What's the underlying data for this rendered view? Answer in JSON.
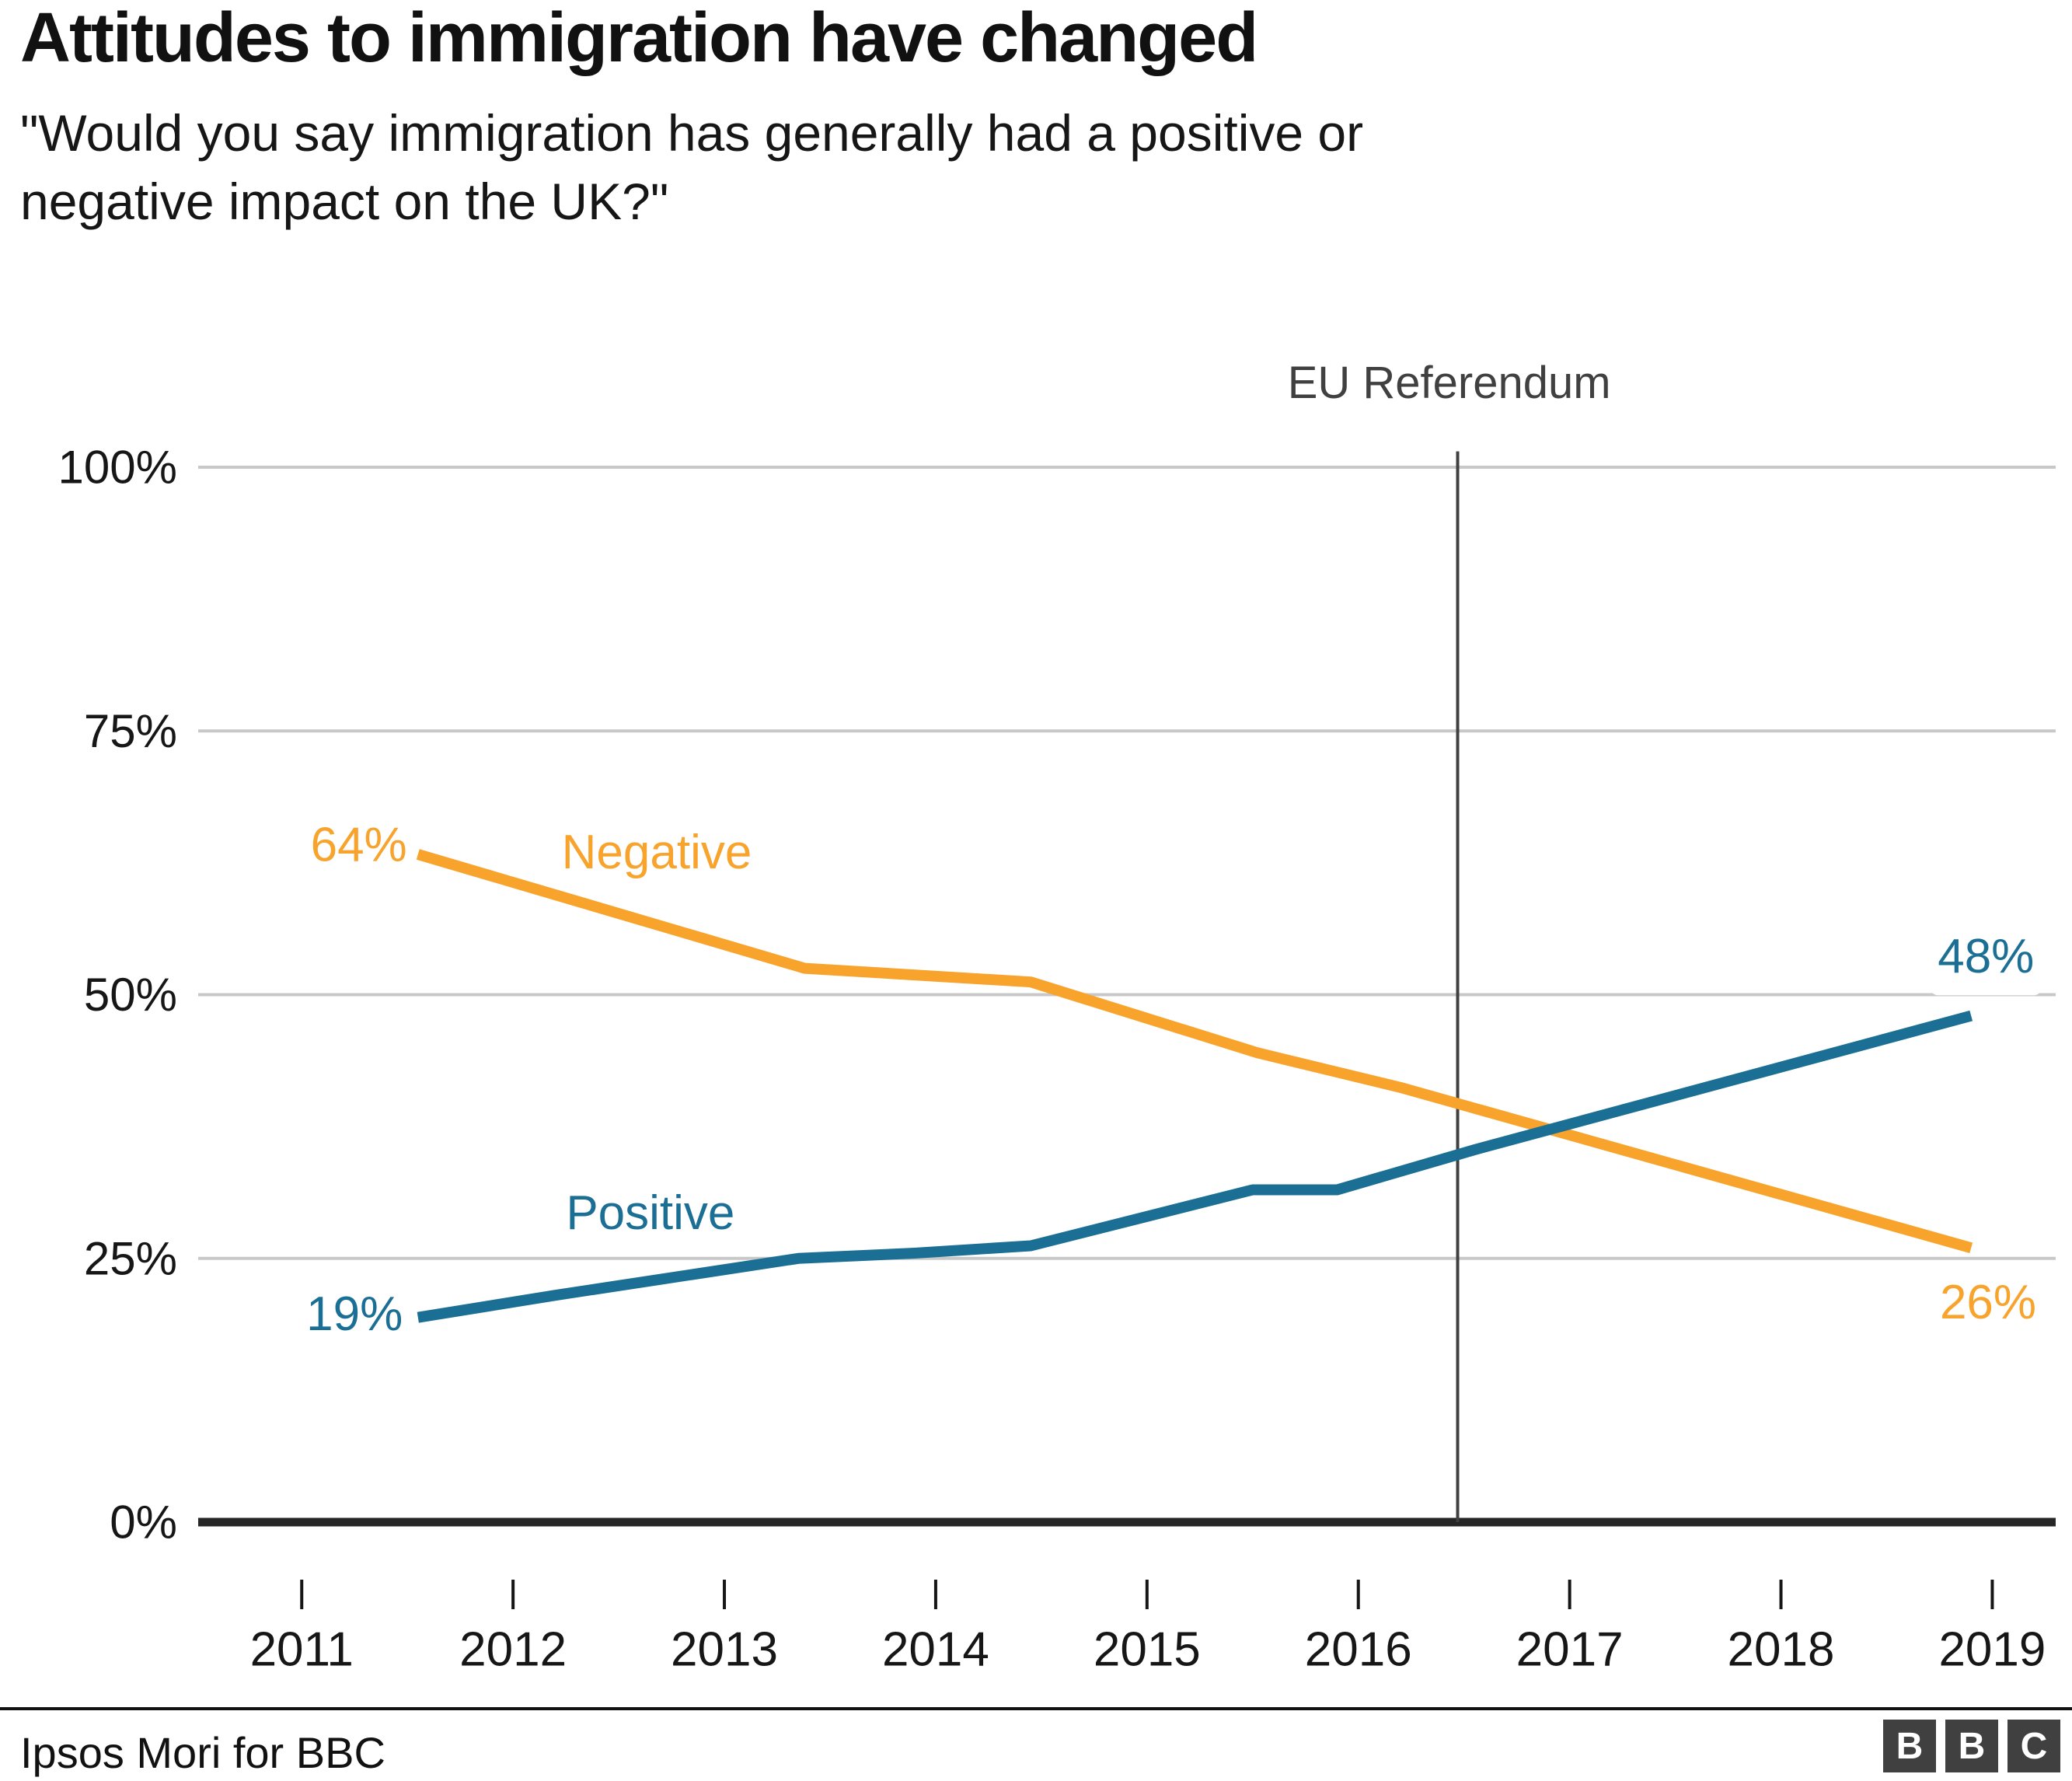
{
  "header": {
    "title": "Attitudes to immigration have changed",
    "subtitle_line1": "\"Would you say immigration has generally had a positive or",
    "subtitle_line2": "negative impact on the UK?\""
  },
  "footer": {
    "source": "Ipsos Mori for BBC",
    "logo_letters": [
      "B",
      "B",
      "C"
    ]
  },
  "colors": {
    "negative": "#f7a32c",
    "positive": "#1c6f94",
    "grid": "#c8c8c8",
    "axis": "#262626",
    "refline": "#404040",
    "tick_text": "#161616",
    "logo_bg": "#404040"
  },
  "chart_data": {
    "type": "line",
    "title": "Attitudes to immigration have changed",
    "subtitle": "\"Would you say immigration has generally had a positive or negative impact on the UK?\"",
    "xlabel": "",
    "ylabel": "",
    "x_axis": {
      "tick_values": [
        2011,
        2012,
        2013,
        2014,
        2015,
        2016,
        2017,
        2018,
        2019
      ],
      "tick_labels": [
        "2011",
        "2012",
        "2013",
        "2014",
        "2015",
        "2016",
        "2017",
        "2018",
        "2019"
      ],
      "range": [
        2010.51,
        2019.3
      ]
    },
    "y_axis": {
      "tick_values": [
        0,
        25,
        50,
        75,
        100
      ],
      "tick_labels": [
        "0%",
        "25%",
        "50%",
        "75%",
        "100%"
      ],
      "range": [
        0,
        100
      ],
      "gridlines": true
    },
    "reference_line": {
      "label": "EU Referendum",
      "x": 2016.47,
      "y_top_pct": 101.5,
      "label_x": 2016.43,
      "label_y_pct": 108
    },
    "series": [
      {
        "name": "Negative",
        "color_key": "negative",
        "start_value": 64,
        "end_value": 26,
        "points": [
          [
            2011.55,
            63.3
          ],
          [
            2013.38,
            52.5
          ],
          [
            2014.45,
            51.2
          ],
          [
            2015.52,
            44.5
          ],
          [
            2016.2,
            41.2
          ],
          [
            2018.9,
            26
          ]
        ]
      },
      {
        "name": "Positive",
        "color_key": "positive",
        "start_value": 19,
        "end_value": 48,
        "points": [
          [
            2011.55,
            19.4
          ],
          [
            2012.2,
            21.5
          ],
          [
            2013.35,
            25
          ],
          [
            2013.9,
            25.5
          ],
          [
            2014.45,
            26.2
          ],
          [
            2015.5,
            31.5
          ],
          [
            2015.9,
            31.5
          ],
          [
            2016.55,
            35.3
          ],
          [
            2018.9,
            48
          ]
        ]
      }
    ],
    "annotations": [
      {
        "text": "64%",
        "color_key": "negative",
        "x": 2011.27,
        "y": 64.2,
        "halo": false
      },
      {
        "text": "Negative",
        "color_key": "negative",
        "x": 2012.68,
        "y": 63.5,
        "halo": false
      },
      {
        "text": "19%",
        "color_key": "positive",
        "x": 2011.25,
        "y": 19.7,
        "halo": false
      },
      {
        "text": "Positive",
        "color_key": "positive",
        "x": 2012.65,
        "y": 29.3,
        "halo": false
      },
      {
        "text": "48%",
        "color_key": "positive",
        "x": 2018.97,
        "y": 53.6,
        "halo": true
      },
      {
        "text": "26%",
        "color_key": "negative",
        "x": 2018.98,
        "y": 20.8,
        "halo": false
      }
    ]
  }
}
